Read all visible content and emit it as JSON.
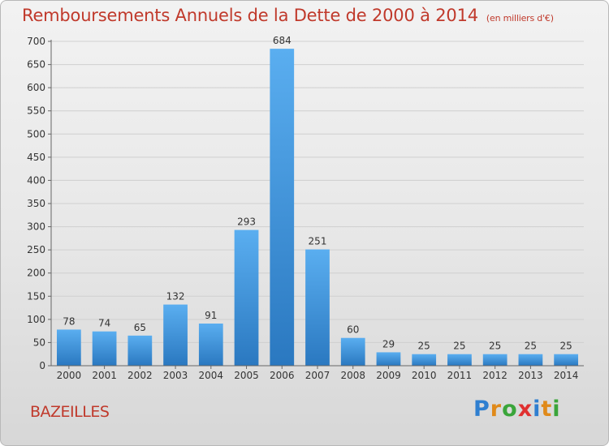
{
  "chart_data": {
    "type": "bar",
    "title": "Remboursements Annuels de la Dette de 2000 à 2014",
    "unit_note": "(en milliers d'€)",
    "categories": [
      "2000",
      "2001",
      "2002",
      "2003",
      "2004",
      "2005",
      "2006",
      "2007",
      "2008",
      "2009",
      "2010",
      "2011",
      "2012",
      "2013",
      "2014"
    ],
    "values": [
      78,
      74,
      65,
      132,
      91,
      293,
      684,
      251,
      60,
      29,
      25,
      25,
      25,
      25,
      25
    ],
    "ylim": [
      0,
      700
    ],
    "yticks": [
      0,
      50,
      100,
      150,
      200,
      250,
      300,
      350,
      400,
      450,
      500,
      550,
      600,
      650,
      700
    ],
    "grid": true,
    "legend": "none",
    "bar_color": "#3a8fd6"
  },
  "footer": {
    "town": "BAZEILLES",
    "logo_letters": [
      {
        "ch": "P",
        "color": "#2f7fd0"
      },
      {
        "ch": "r",
        "color": "#e08a1a"
      },
      {
        "ch": "o",
        "color": "#3aa53a"
      },
      {
        "ch": "x",
        "color": "#e03030"
      },
      {
        "ch": "i",
        "color": "#2f7fd0"
      },
      {
        "ch": "t",
        "color": "#e08a1a"
      },
      {
        "ch": "i",
        "color": "#3aa53a"
      }
    ]
  }
}
